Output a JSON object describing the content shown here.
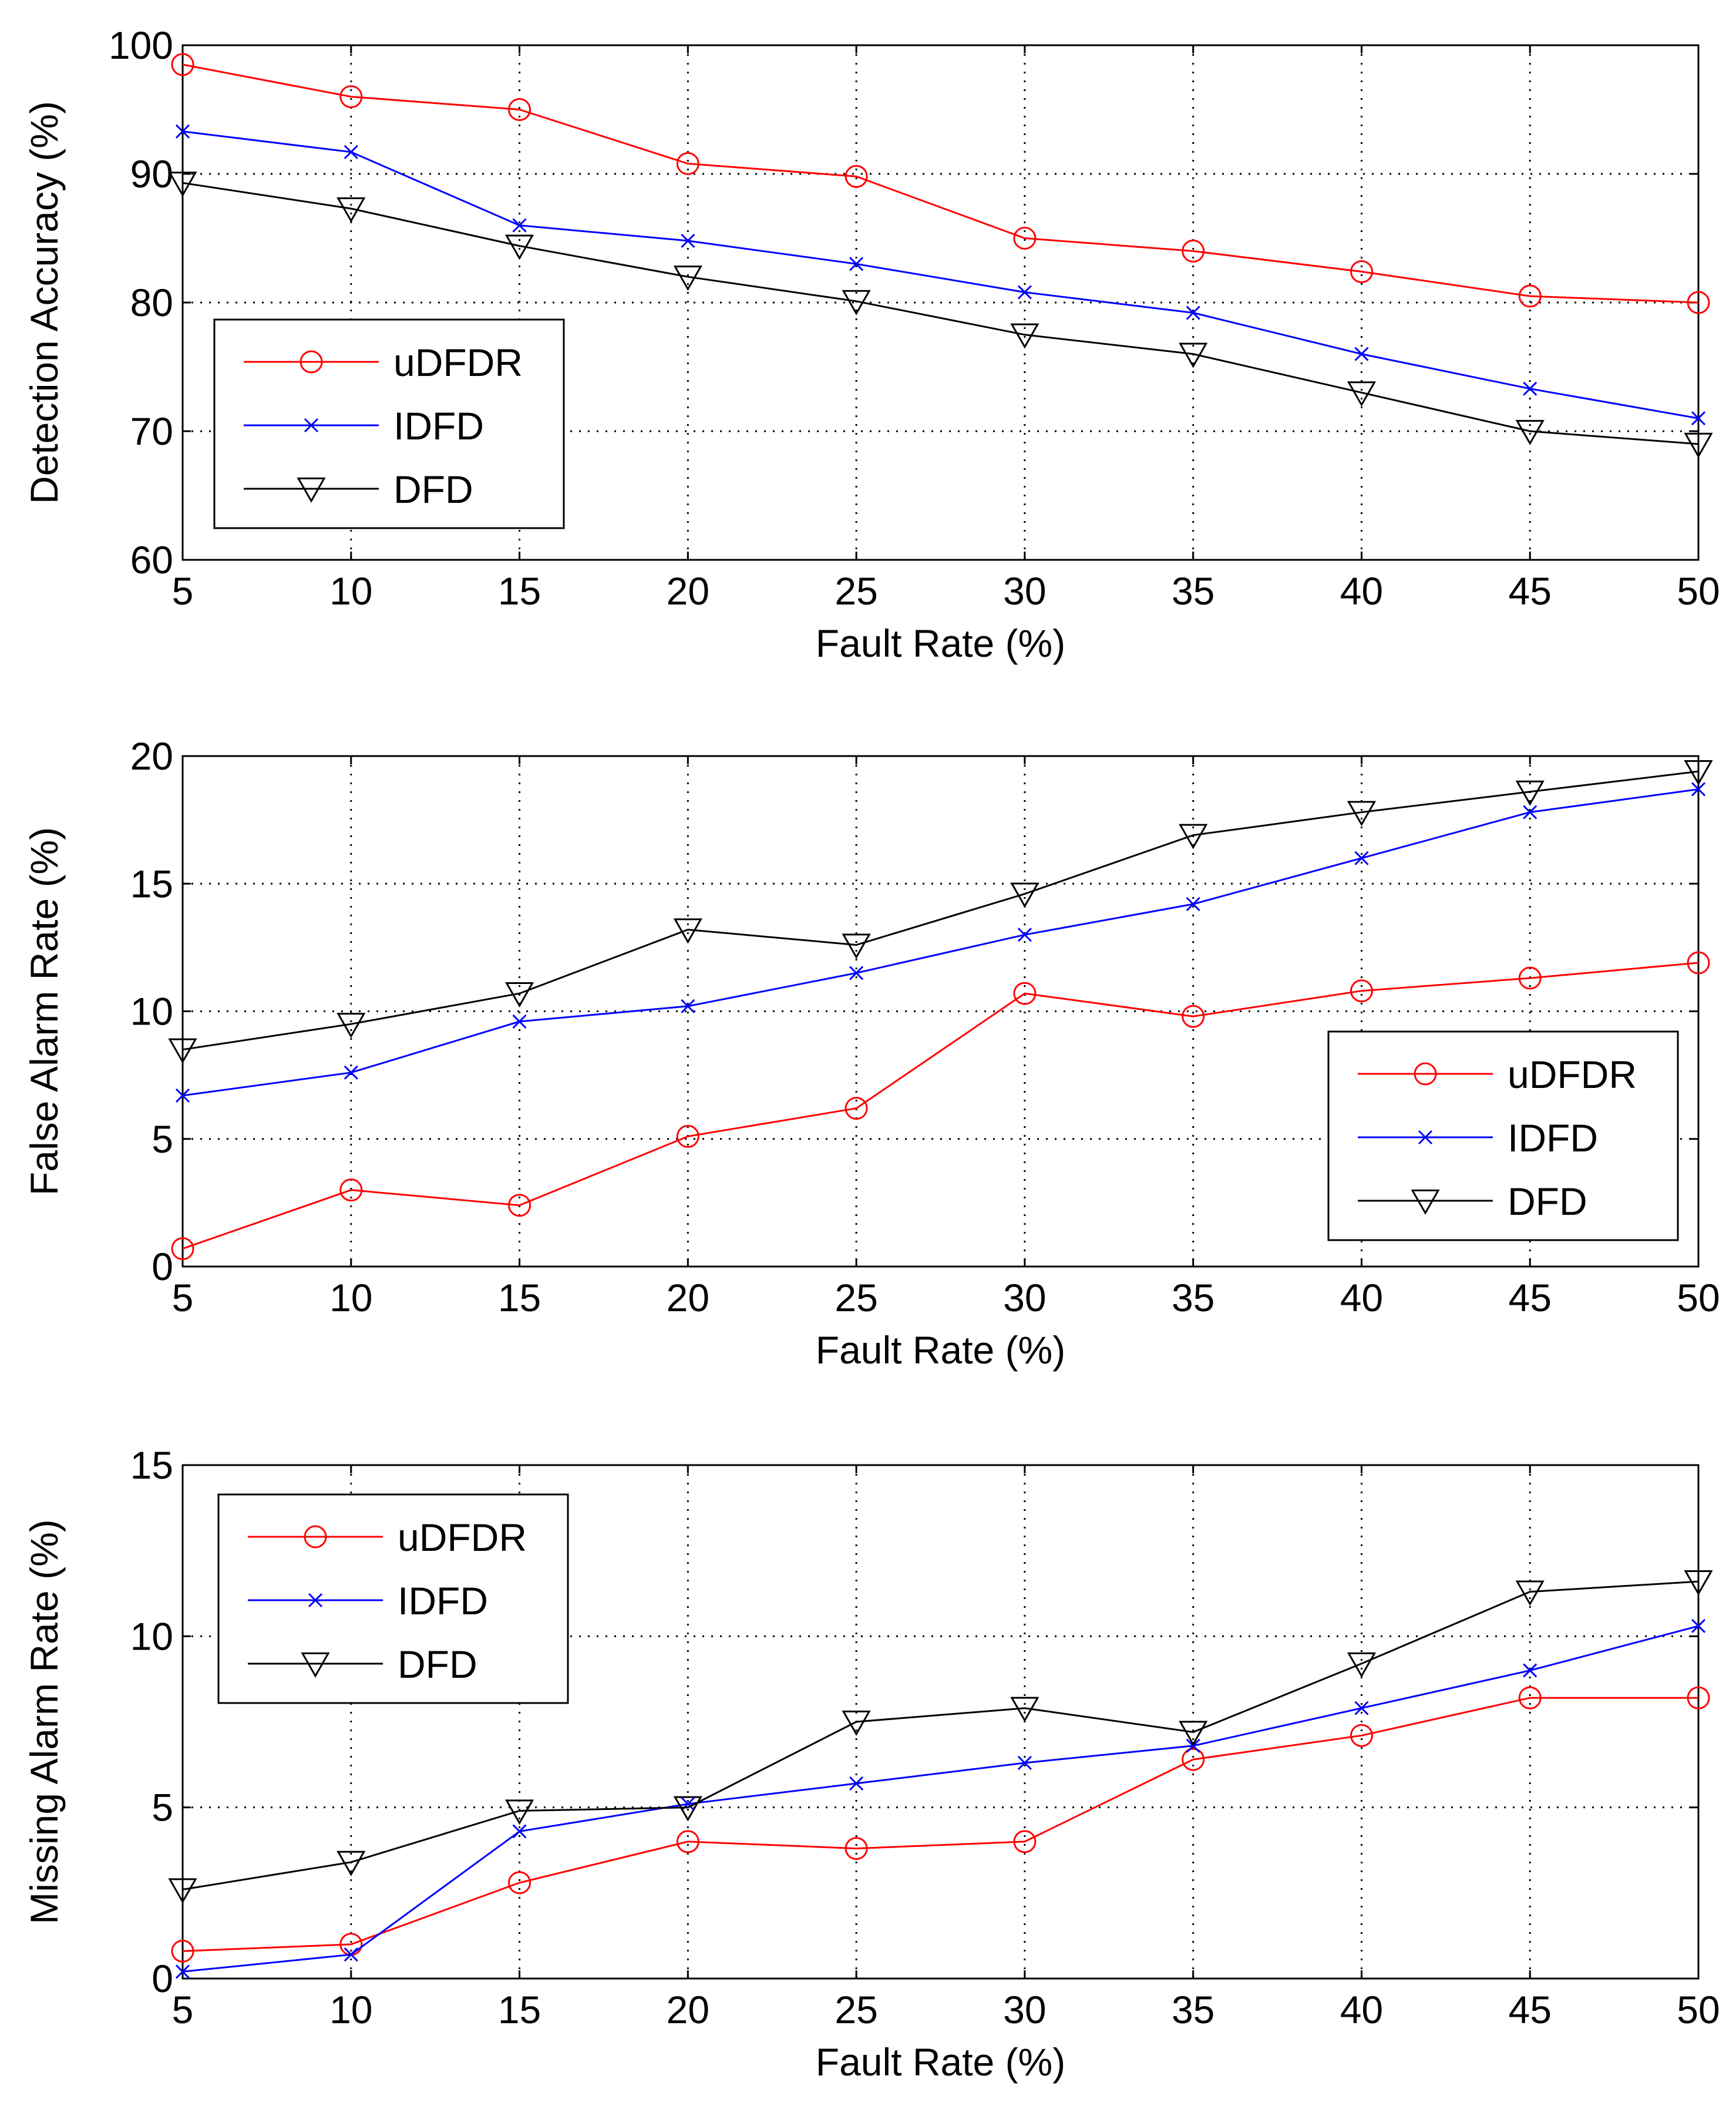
{
  "chart_data": [
    {
      "type": "line",
      "xlabel": "Fault Rate (%)",
      "ylabel": "Detection Accuracy (%)",
      "x": [
        5,
        10,
        15,
        20,
        25,
        30,
        35,
        40,
        45,
        50
      ],
      "xticks": [
        "5",
        "10",
        "15",
        "20",
        "25",
        "30",
        "35",
        "40",
        "45",
        "50"
      ],
      "xlim": [
        5,
        50
      ],
      "ylim": [
        60,
        100
      ],
      "yticks": [
        "60",
        "70",
        "80",
        "90",
        "100"
      ],
      "ytick_values": [
        60,
        70,
        80,
        90,
        100
      ],
      "grid": true,
      "legend_position": "bottom-left",
      "series": [
        {
          "name": "uDFDR",
          "color": "#ff0000",
          "marker": "circle",
          "values": [
            98.5,
            96.0,
            95.0,
            90.8,
            89.8,
            85.0,
            84.0,
            82.4,
            80.5,
            80.0
          ]
        },
        {
          "name": "IDFD",
          "color": "#0000ff",
          "marker": "x",
          "values": [
            93.3,
            91.7,
            86.0,
            84.8,
            83.0,
            80.8,
            79.2,
            76.0,
            73.3,
            71.0
          ]
        },
        {
          "name": "DFD",
          "color": "#000000",
          "marker": "triangle-down",
          "values": [
            89.3,
            87.3,
            84.4,
            82.0,
            80.1,
            77.5,
            76.0,
            73.0,
            70.0,
            69.0
          ]
        }
      ]
    },
    {
      "type": "line",
      "xlabel": "Fault Rate (%)",
      "ylabel": "False Alarm Rate (%)",
      "x": [
        5,
        10,
        15,
        20,
        25,
        30,
        35,
        40,
        45,
        50
      ],
      "xticks": [
        "5",
        "10",
        "15",
        "20",
        "25",
        "30",
        "35",
        "40",
        "45",
        "50"
      ],
      "xlim": [
        5,
        50
      ],
      "ylim": [
        0,
        20
      ],
      "yticks": [
        "0",
        "5",
        "10",
        "15",
        "20"
      ],
      "ytick_values": [
        0,
        5,
        10,
        15,
        20
      ],
      "grid": true,
      "legend_position": "bottom-right",
      "series": [
        {
          "name": "uDFDR",
          "color": "#ff0000",
          "marker": "circle",
          "values": [
            0.7,
            3.0,
            2.4,
            5.1,
            6.2,
            10.7,
            9.8,
            10.8,
            11.3,
            11.9
          ]
        },
        {
          "name": "IDFD",
          "color": "#0000ff",
          "marker": "x",
          "values": [
            6.7,
            7.6,
            9.6,
            10.2,
            11.5,
            13.0,
            14.2,
            16.0,
            17.8,
            18.7
          ]
        },
        {
          "name": "DFD",
          "color": "#000000",
          "marker": "triangle-down",
          "values": [
            8.5,
            9.5,
            10.7,
            13.2,
            12.6,
            14.6,
            16.9,
            17.8,
            18.6,
            19.4
          ]
        }
      ]
    },
    {
      "type": "line",
      "xlabel": "Fault Rate (%)",
      "ylabel": "Missing Alarm Rate (%)",
      "x": [
        5,
        10,
        15,
        20,
        25,
        30,
        35,
        40,
        45,
        50
      ],
      "xticks": [
        "5",
        "10",
        "15",
        "20",
        "25",
        "30",
        "35",
        "40",
        "45",
        "50"
      ],
      "xlim": [
        5,
        50
      ],
      "ylim": [
        0,
        15
      ],
      "yticks": [
        "0",
        "5",
        "10",
        "15"
      ],
      "ytick_values": [
        0,
        5,
        10,
        15
      ],
      "grid": true,
      "legend_position": "top-left",
      "series": [
        {
          "name": "uDFDR",
          "color": "#ff0000",
          "marker": "circle",
          "values": [
            0.8,
            1.0,
            2.8,
            4.0,
            3.8,
            4.0,
            6.4,
            7.1,
            8.2,
            8.2
          ]
        },
        {
          "name": "IDFD",
          "color": "#0000ff",
          "marker": "x",
          "values": [
            0.2,
            0.7,
            4.3,
            5.1,
            5.7,
            6.3,
            6.8,
            7.9,
            9.0,
            10.3
          ]
        },
        {
          "name": "DFD",
          "color": "#000000",
          "marker": "triangle-down",
          "values": [
            2.6,
            3.4,
            4.9,
            5.0,
            7.5,
            7.9,
            7.2,
            9.2,
            11.3,
            11.6
          ]
        }
      ]
    }
  ]
}
